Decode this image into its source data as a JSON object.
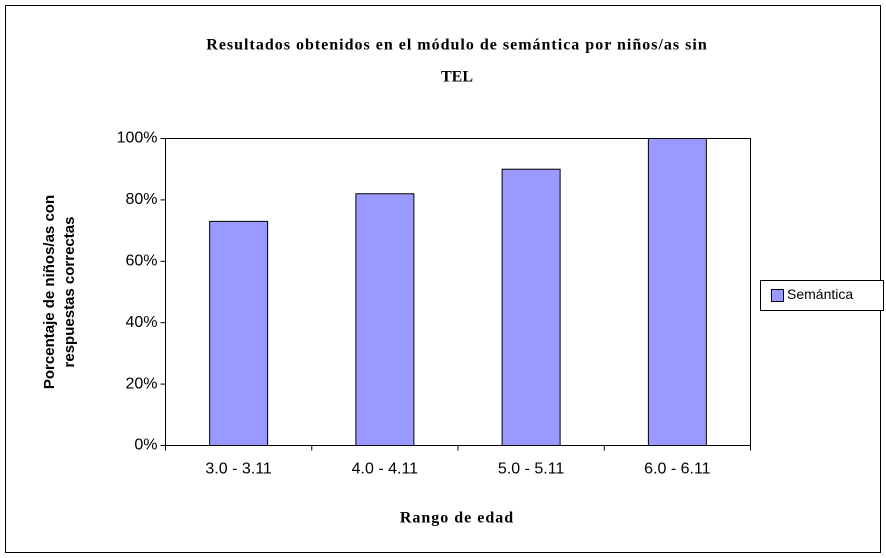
{
  "chart_data": {
    "type": "bar",
    "title": [
      "Resultados obtenidos en el módulo de semántica por  niños/as sin",
      "TEL"
    ],
    "y_label": [
      "Porcentaje de niños/as con",
      "respuestas correctas"
    ],
    "x_label": "Rango de edad",
    "categories": [
      "3.0 - 3.11",
      "4.0 - 4.11",
      "5.0 - 5.11",
      "6.0 - 6.11"
    ],
    "series": [
      {
        "name": "Semántica",
        "color": "#9999ff",
        "values": [
          73,
          82,
          90,
          100
        ]
      }
    ],
    "ylim": [
      0,
      100
    ],
    "yticks": [
      {
        "value": 0,
        "label": "0%"
      },
      {
        "value": 20,
        "label": "20%"
      },
      {
        "value": 40,
        "label": "40%"
      },
      {
        "value": 60,
        "label": "60%"
      },
      {
        "value": 80,
        "label": "80%"
      },
      {
        "value": 100,
        "label": "100%"
      }
    ],
    "legend": "right"
  }
}
